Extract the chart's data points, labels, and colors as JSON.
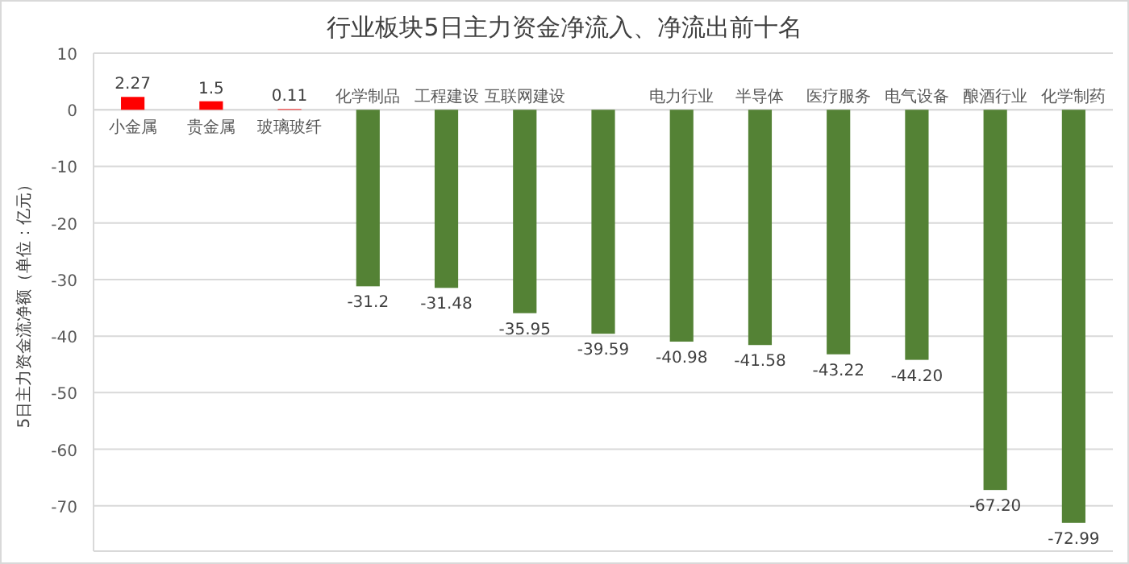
{
  "chart_data": {
    "type": "bar",
    "title": "行业板块5日主力资金净流入、净流出前十名",
    "ylabel": "5日主力资金流净额（单位：亿元）",
    "categories": [
      "小金属",
      "贵金属",
      "玻璃玻纤",
      "化学制品",
      "工程建设",
      "互联网建设",
      null,
      "电力行业",
      "半导体",
      "医疗服务",
      "电气设备",
      "酿酒行业",
      "化学制药"
    ],
    "values": [
      2.27,
      1.5,
      0.11,
      -31.2,
      -31.48,
      -35.95,
      -39.59,
      -40.98,
      -41.58,
      -43.22,
      -44.2,
      -67.2,
      -72.99
    ],
    "value_labels": [
      "2.27",
      "1.5",
      "0.11",
      "-31.2",
      "-31.48",
      "-35.95",
      "-39.59",
      "-40.98",
      "-41.58",
      "-43.22",
      "-44.20",
      "-67.20",
      "-72.99"
    ],
    "colors": [
      "#ff0000",
      "#ff0000",
      "#ff0000",
      "#548235",
      "#548235",
      "#548235",
      "#548235",
      "#548235",
      "#548235",
      "#548235",
      "#548235",
      "#548235",
      "#548235"
    ],
    "ylim": [
      -78,
      10
    ],
    "yticks": [
      10,
      0,
      -10,
      -20,
      -30,
      -40,
      -50,
      -60,
      -70
    ],
    "grid": "y"
  }
}
